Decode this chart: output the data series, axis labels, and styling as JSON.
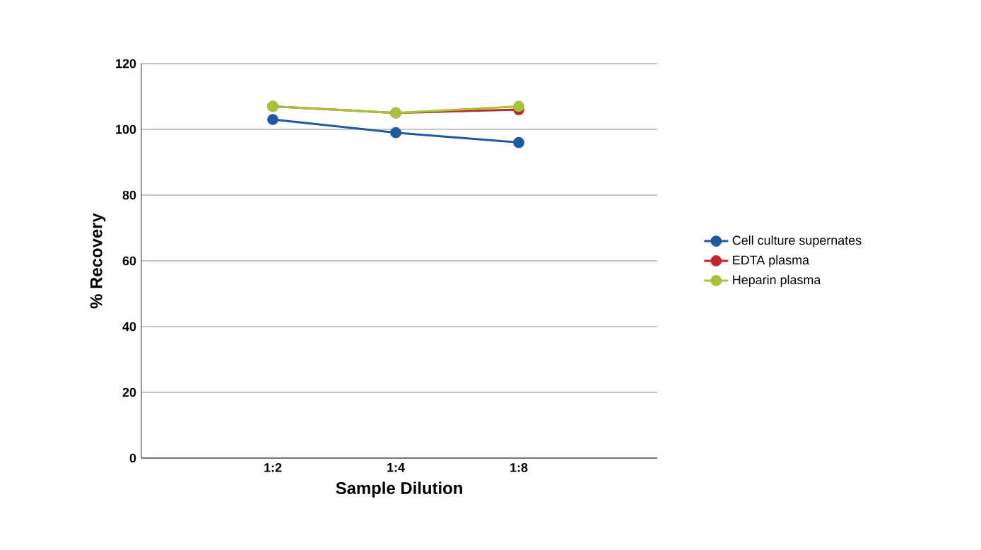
{
  "chart_data": {
    "type": "line",
    "xlabel": "Sample Dilution",
    "ylabel": "% Recovery",
    "categories": [
      "1:2",
      "1:4",
      "1:8"
    ],
    "series": [
      {
        "name": "Cell culture supernates",
        "color": "#1f5aa0",
        "values": [
          103,
          99,
          96
        ]
      },
      {
        "name": "EDTA plasma",
        "color": "#c0282d",
        "values": [
          107,
          105,
          106
        ]
      },
      {
        "name": "Heparin plasma",
        "color": "#a9c23a",
        "values": [
          107,
          105,
          107
        ]
      }
    ],
    "ylim": [
      0,
      120
    ],
    "yticks": [
      0,
      20,
      40,
      60,
      80,
      100,
      120
    ],
    "grid": "y",
    "legend": "right",
    "marker": "circle",
    "line_style": "solid"
  }
}
